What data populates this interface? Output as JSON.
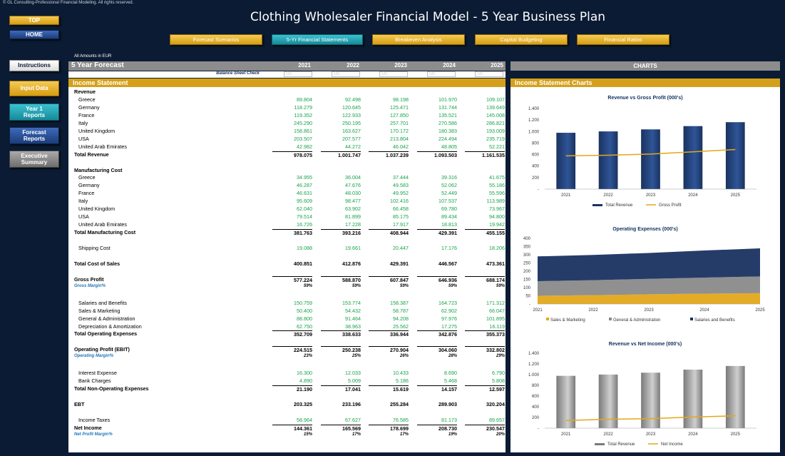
{
  "copyright": "© GL Consulting-Professional Financial Modeling. All rights reserved.",
  "title": "Clothing Wholesaler Financial Model - 5 Year Business Plan",
  "nav": {
    "top": "TOP",
    "home": "HOME",
    "instructions": "Instructions",
    "input_data": "Input Data",
    "year1_reports": "Year 1 Reports",
    "forecast_reports": "Forecast Reports",
    "executive_summary": "Executive Summary"
  },
  "tabs": [
    "Forecast Scenarios",
    "5-Yr Financial Statements",
    "Breakeven Analysis",
    "Capital Budgeting",
    "Financial Ratios"
  ],
  "amounts_note": "All Amounts in  EUR",
  "forecast_label": "5 Year Forecast",
  "years": [
    "2021",
    "2022",
    "2023",
    "2024",
    "2025"
  ],
  "charts_label": "CHARTS",
  "balance_check": {
    "label": "Balance Sheet Check",
    "values": [
      "OK",
      "OK",
      "OK",
      "OK",
      "OK"
    ]
  },
  "income_statement_label": "Income Statement",
  "income_charts_label": "Income Statement Charts",
  "rows": [
    {
      "label": "Revenue",
      "type": "header",
      "values": []
    },
    {
      "label": "Greece",
      "type": "green",
      "values": [
        "89.804",
        "92.498",
        "98.198",
        "101.970",
        "109.107"
      ]
    },
    {
      "label": "Germany",
      "type": "green",
      "values": [
        "118.279",
        "120.645",
        "125.471",
        "131.744",
        "139.649"
      ]
    },
    {
      "label": "France",
      "type": "green",
      "values": [
        "119.352",
        "122.933",
        "127.850",
        "135.521",
        "145.008"
      ]
    },
    {
      "label": "Italy",
      "type": "green",
      "values": [
        "245.290",
        "250.195",
        "257.701",
        "270.586",
        "286.821"
      ]
    },
    {
      "label": "United Kingdom",
      "type": "green",
      "values": [
        "158.861",
        "163.627",
        "170.172",
        "180.383",
        "193.009"
      ]
    },
    {
      "label": "USA",
      "type": "green",
      "values": [
        "203.507",
        "207.577",
        "213.804",
        "224.494",
        "235.719"
      ]
    },
    {
      "label": "United Arab Emirates",
      "type": "green",
      "values": [
        "42.982",
        "44.272",
        "46.042",
        "48.805",
        "52.221"
      ]
    },
    {
      "label": "Total Revenue",
      "type": "bold topline",
      "values": [
        "978.075",
        "1.001.747",
        "1.037.239",
        "1.093.503",
        "1.161.535"
      ]
    },
    {
      "label": "",
      "type": "spacer",
      "values": []
    },
    {
      "label": "Manufacturing Cost",
      "type": "header",
      "values": []
    },
    {
      "label": "Greece",
      "type": "green",
      "values": [
        "34.955",
        "36.004",
        "37.444",
        "39.316",
        "41.675"
      ]
    },
    {
      "label": "Germany",
      "type": "green",
      "values": [
        "46.287",
        "47.676",
        "49.583",
        "52.062",
        "55.186"
      ]
    },
    {
      "label": "France",
      "type": "green",
      "values": [
        "46.631",
        "48.030",
        "49.952",
        "52.449",
        "55.596"
      ]
    },
    {
      "label": "Italy",
      "type": "green",
      "values": [
        "95.609",
        "98.477",
        "102.416",
        "107.537",
        "113.989"
      ]
    },
    {
      "label": "United Kingdom",
      "type": "green",
      "values": [
        "62.040",
        "63.902",
        "66.458",
        "69.780",
        "73.967"
      ]
    },
    {
      "label": "USA",
      "type": "green",
      "values": [
        "79.514",
        "81.899",
        "85.175",
        "89.434",
        "94.800"
      ]
    },
    {
      "label": "United Arab Emirates",
      "type": "green",
      "values": [
        "16.726",
        "17.228",
        "17.917",
        "18.813",
        "19.942"
      ]
    },
    {
      "label": "Total Manufacturing Cost",
      "type": "bold topline",
      "values": [
        "381.763",
        "393.216",
        "408.944",
        "429.391",
        "455.155"
      ]
    },
    {
      "label": "",
      "type": "spacer",
      "values": []
    },
    {
      "label": "Shipping Cost",
      "type": "green",
      "values": [
        "19.088",
        "19.661",
        "20.447",
        "17.176",
        "18.206"
      ]
    },
    {
      "label": "",
      "type": "spacer",
      "values": []
    },
    {
      "label": "Total Cost of Sales",
      "type": "bold",
      "values": [
        "400.851",
        "412.876",
        "429.391",
        "446.567",
        "473.361"
      ]
    },
    {
      "label": "",
      "type": "spacer",
      "values": []
    },
    {
      "label": "Gross Profit",
      "type": "bold topline",
      "values": [
        "577.224",
        "588.870",
        "607.847",
        "646.936",
        "688.174"
      ]
    },
    {
      "label": "Gross Margin%",
      "type": "pct",
      "values": [
        "59%",
        "59%",
        "59%",
        "59%",
        "59%"
      ]
    },
    {
      "label": "",
      "type": "spacer",
      "values": []
    },
    {
      "label": "Salaries and Benefits",
      "type": "green",
      "values": [
        "150.759",
        "153.774",
        "158.387",
        "164.723",
        "171.312"
      ]
    },
    {
      "label": "Sales & Marketing",
      "type": "green",
      "values": [
        "50.400",
        "54.432",
        "58.787",
        "62.902",
        "66.047"
      ]
    },
    {
      "label": "General & Administration",
      "type": "green",
      "values": [
        "88.800",
        "91.464",
        "94.208",
        "97.976",
        "101.895"
      ]
    },
    {
      "label": "Depreciation & Amortization",
      "type": "green",
      "values": [
        "62.750",
        "38.963",
        "25.562",
        "17.275",
        "16.119"
      ]
    },
    {
      "label": "Total Operating Expenses",
      "type": "bold topline",
      "values": [
        "352.709",
        "338.633",
        "336.944",
        "342.876",
        "355.373"
      ]
    },
    {
      "label": "",
      "type": "spacer",
      "values": []
    },
    {
      "label": "Operating Profit (EBIT)",
      "type": "bold topline",
      "values": [
        "224.515",
        "250.238",
        "270.904",
        "304.060",
        "332.802"
      ]
    },
    {
      "label": "Operating Margin%",
      "type": "pct",
      "values": [
        "23%",
        "25%",
        "26%",
        "28%",
        "29%"
      ]
    },
    {
      "label": "",
      "type": "spacer",
      "values": []
    },
    {
      "label": "Interest Expense",
      "type": "green",
      "values": [
        "16.300",
        "12.033",
        "10.433",
        "8.690",
        "6.790"
      ]
    },
    {
      "label": "Bank Charges",
      "type": "green",
      "values": [
        "4.890",
        "5.009",
        "5.186",
        "5.468",
        "5.808"
      ]
    },
    {
      "label": "Total Non-Operating Expenses",
      "type": "bold topline",
      "values": [
        "21.190",
        "17.041",
        "15.619",
        "14.157",
        "12.597"
      ]
    },
    {
      "label": "",
      "type": "spacer",
      "values": []
    },
    {
      "label": "EBT",
      "type": "bold",
      "values": [
        "203.325",
        "233.196",
        "255.284",
        "289.903",
        "320.204"
      ]
    },
    {
      "label": "",
      "type": "spacer",
      "values": []
    },
    {
      "label": "Income Taxes",
      "type": "green",
      "values": [
        "58.964",
        "67.627",
        "76.585",
        "81.173",
        "89.657"
      ]
    },
    {
      "label": "Net Income",
      "type": "bold topline",
      "values": [
        "144.361",
        "165.569",
        "178.699",
        "208.730",
        "230.547"
      ]
    },
    {
      "label": "Net Profit Margin%",
      "type": "pct",
      "values": [
        "15%",
        "17%",
        "17%",
        "19%",
        "20%"
      ]
    }
  ],
  "chart_data": [
    {
      "type": "bar",
      "title": "Revenue vs Gross Profit (000's)",
      "categories": [
        "2021",
        "2022",
        "2023",
        "2024",
        "2025"
      ],
      "yticks": [
        "-",
        "200",
        "400",
        "600",
        "800",
        "1.000",
        "1.200",
        "1.400"
      ],
      "ylim": [
        0,
        1400
      ],
      "series": [
        {
          "name": "Total Revenue",
          "kind": "bar",
          "values": [
            978,
            1002,
            1037,
            1094,
            1162
          ],
          "color": "#1a3260"
        },
        {
          "name": "Gross Profit",
          "kind": "line",
          "values": [
            577,
            589,
            608,
            647,
            688
          ],
          "color": "#e3a81a"
        }
      ],
      "legend": "bottom"
    },
    {
      "type": "area",
      "title": "Operating Expenses (000's)",
      "categories": [
        "2021",
        "2022",
        "2023",
        "2024",
        "2025"
      ],
      "yticks": [
        "-",
        "50",
        "100",
        "150",
        "200",
        "250",
        "300",
        "350",
        "400"
      ],
      "ylim": [
        0,
        400
      ],
      "series": [
        {
          "name": "Sales & Marketing",
          "values": [
            50,
            54,
            59,
            63,
            66
          ],
          "color": "#e3a81a"
        },
        {
          "name": "General & Administration",
          "values": [
            89,
            91,
            94,
            98,
            102
          ],
          "color": "#8a8a8a"
        },
        {
          "name": "Salaries and Benefits",
          "values": [
            151,
            154,
            158,
            165,
            171
          ],
          "color": "#1a3260"
        }
      ],
      "stacked": true,
      "legend": "bottom"
    },
    {
      "type": "bar",
      "title": "Revenue vs Net Income (000's)",
      "categories": [
        "2021",
        "2022",
        "2023",
        "2024",
        "2025"
      ],
      "yticks": [
        "-",
        "200",
        "400",
        "600",
        "800",
        "1.000",
        "1.200",
        "1.400"
      ],
      "ylim": [
        0,
        1400
      ],
      "series": [
        {
          "name": "Total Revenue",
          "kind": "bar",
          "values": [
            978,
            1002,
            1037,
            1094,
            1162
          ],
          "color": "#7a7a7a"
        },
        {
          "name": "Net Income",
          "kind": "line",
          "values": [
            144,
            166,
            179,
            209,
            231
          ],
          "color": "#e3a81a"
        }
      ],
      "legend": "bottom"
    }
  ]
}
